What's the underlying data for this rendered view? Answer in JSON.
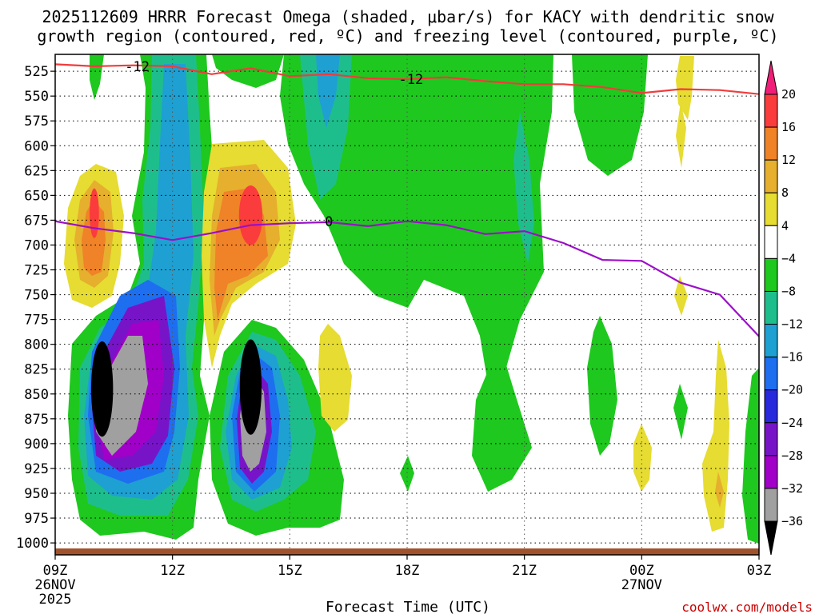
{
  "chart_data": {
    "type": "time-height contour",
    "title_line1": "2025112609 HRRR Forecast Omega (shaded, μbar/s) for KACY with dendritic snow",
    "title_line2": "growth region (contoured, red, ºC) and freezing level (contoured, purple, ºC)",
    "xlabel": "Forecast Time (UTC)",
    "credit": "coolwx.com/models",
    "x_range_hours": [
      0,
      18
    ],
    "y_range_mb": [
      508,
      1012
    ],
    "y_ticks": [
      "525",
      "550",
      "575",
      "600",
      "625",
      "650",
      "675",
      "700",
      "725",
      "750",
      "775",
      "800",
      "825",
      "850",
      "875",
      "900",
      "925",
      "950",
      "975",
      "1000"
    ],
    "x_ticks": [
      {
        "label": "09Z",
        "sub1": "26NOV",
        "sub2": "2025",
        "hour": 0
      },
      {
        "label": "12Z",
        "sub1": "",
        "sub2": "",
        "hour": 3
      },
      {
        "label": "15Z",
        "sub1": "",
        "sub2": "",
        "hour": 6
      },
      {
        "label": "18Z",
        "sub1": "",
        "sub2": "",
        "hour": 9
      },
      {
        "label": "21Z",
        "sub1": "",
        "sub2": "",
        "hour": 12
      },
      {
        "label": "00Z",
        "sub1": "27NOV",
        "sub2": "",
        "hour": 15
      },
      {
        "label": "03Z",
        "sub1": "",
        "sub2": "",
        "hour": 18
      }
    ],
    "colorbar": {
      "labels": [
        "20",
        "16",
        "12",
        "8",
        "4",
        "−4",
        "−8",
        "−12",
        "−16",
        "−20",
        "−24",
        "−28",
        "−32",
        "−36"
      ],
      "colors": [
        "#f01e78",
        "#fa3c3c",
        "#f08228",
        "#e6af2d",
        "#e6dc32",
        "#ffffff",
        "#1ec81e",
        "#1ebe8c",
        "#1ea0d2",
        "#1e6ef0",
        "#2828dc",
        "#7814c8",
        "#a000c8",
        "#a0a0a0",
        "#000000"
      ]
    },
    "snow_growth_label": "-12",
    "freezing_label": "0",
    "snow_growth_line": [
      [
        0,
        518
      ],
      [
        1,
        520
      ],
      [
        2,
        519
      ],
      [
        3,
        520
      ],
      [
        4,
        528
      ],
      [
        5,
        522
      ],
      [
        6,
        530
      ],
      [
        7,
        528
      ],
      [
        8,
        532
      ],
      [
        9,
        533
      ],
      [
        10,
        531
      ],
      [
        11,
        535
      ],
      [
        12,
        538
      ],
      [
        13,
        538
      ],
      [
        14,
        541
      ],
      [
        15,
        547
      ],
      [
        16,
        543
      ],
      [
        17,
        544
      ],
      [
        18,
        548
      ]
    ],
    "freezing_line": [
      [
        0,
        676
      ],
      [
        1,
        683
      ],
      [
        2,
        688
      ],
      [
        3,
        695
      ],
      [
        4,
        688
      ],
      [
        5,
        680
      ],
      [
        6,
        678
      ],
      [
        7,
        677
      ],
      [
        8,
        681
      ],
      [
        9,
        676
      ],
      [
        10,
        680
      ],
      [
        11,
        689
      ],
      [
        12,
        686
      ],
      [
        13,
        698
      ],
      [
        14,
        715
      ],
      [
        15,
        716
      ],
      [
        16,
        738
      ],
      [
        17,
        750
      ],
      [
        18,
        792
      ]
    ],
    "omega_regions": [
      {
        "name": "strong-lift-core-1",
        "value": -36,
        "t": 1.2,
        "p": 845,
        "dt": 0.28,
        "dp": 48
      },
      {
        "name": "strong-lift-core-2",
        "value": -36,
        "t": 5.0,
        "p": 843,
        "dt": 0.28,
        "dp": 48
      },
      {
        "name": "sink-max-1",
        "value": 18,
        "t": 1.0,
        "p": 668,
        "dt": 0.12,
        "dp": 25
      },
      {
        "name": "sink-max-2",
        "value": 18,
        "t": 5.0,
        "p": 670,
        "dt": 0.3,
        "dp": 30
      }
    ]
  }
}
